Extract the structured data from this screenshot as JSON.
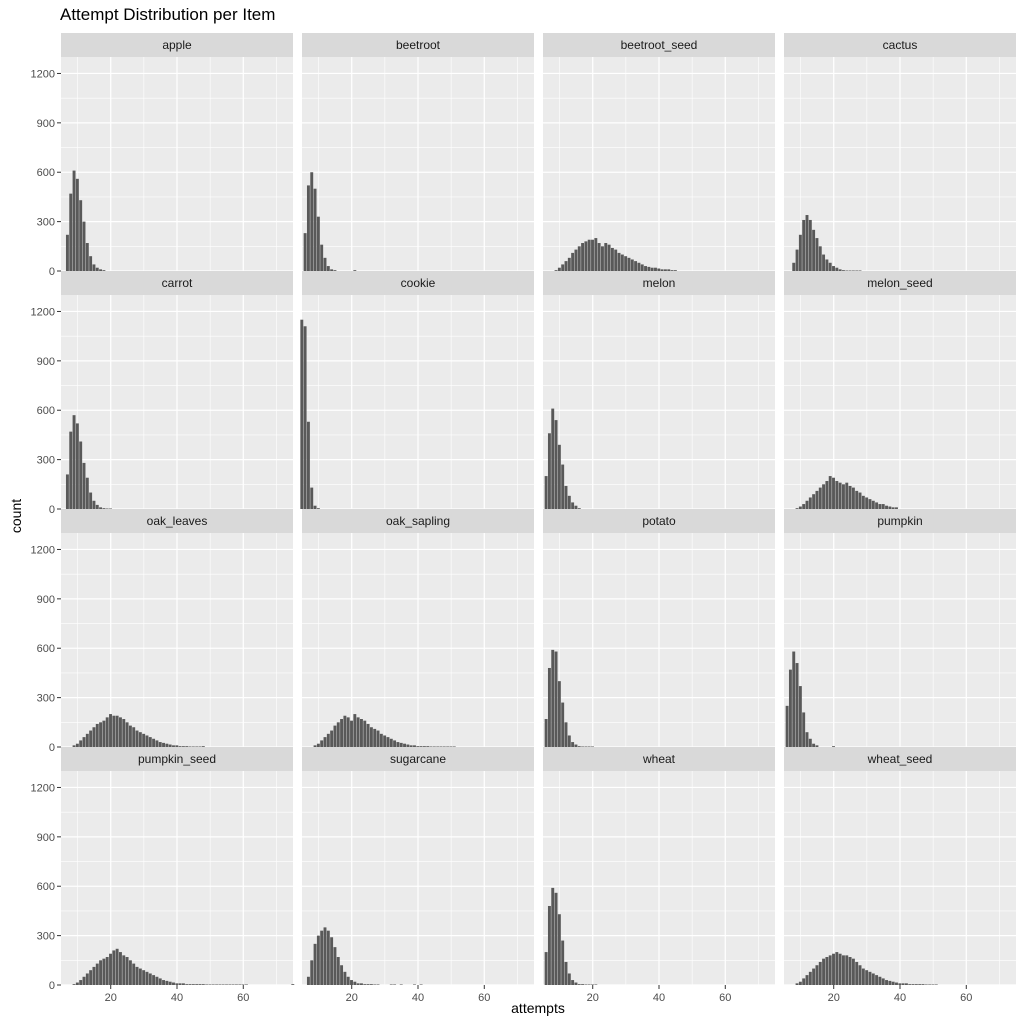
{
  "chart_data": {
    "type": "bar",
    "title": "Attempt Distribution per Item",
    "xlabel": "attempts",
    "ylabel": "count",
    "xlim": [
      5,
      75
    ],
    "ylim": [
      0,
      1300
    ],
    "x_ticks": [
      20,
      40,
      60
    ],
    "y_ticks": [
      0,
      300,
      600,
      900,
      1200
    ],
    "grid": true,
    "facets": [
      {
        "name": "apple",
        "start": 7,
        "values": [
          220,
          470,
          610,
          560,
          430,
          300,
          170,
          90,
          40,
          20,
          10,
          5
        ]
      },
      {
        "name": "beetroot",
        "start": 6,
        "values": [
          230,
          520,
          600,
          500,
          330,
          160,
          80,
          30,
          10,
          5,
          0,
          0,
          0,
          0,
          0,
          5
        ]
      },
      {
        "name": "beetroot_seed",
        "start": 9,
        "values": [
          5,
          20,
          40,
          60,
          80,
          110,
          130,
          150,
          170,
          180,
          190,
          190,
          200,
          170,
          150,
          170,
          160,
          140,
          130,
          110,
          100,
          90,
          80,
          70,
          60,
          50,
          40,
          30,
          25,
          20,
          20,
          15,
          10,
          10,
          10,
          5,
          5
        ]
      },
      {
        "name": "cactus",
        "start": 8,
        "values": [
          50,
          130,
          220,
          310,
          340,
          310,
          250,
          200,
          150,
          100,
          70,
          50,
          30,
          20,
          10,
          5,
          3,
          3,
          3,
          3,
          3
        ]
      },
      {
        "name": "carrot",
        "start": 7,
        "values": [
          210,
          470,
          570,
          520,
          410,
          280,
          190,
          100,
          50,
          25,
          10,
          5,
          3,
          3
        ]
      },
      {
        "name": "cookie",
        "start": 5,
        "values": [
          1150,
          1110,
          530,
          130,
          20,
          5
        ]
      },
      {
        "name": "melon",
        "start": 6,
        "values": [
          200,
          460,
          610,
          540,
          390,
          270,
          140,
          80,
          40,
          20,
          5
        ]
      },
      {
        "name": "melon_seed",
        "start": 9,
        "values": [
          5,
          15,
          30,
          50,
          70,
          90,
          110,
          130,
          150,
          170,
          200,
          190,
          170,
          160,
          150,
          160,
          140,
          130,
          110,
          100,
          80,
          70,
          60,
          50,
          40,
          30,
          30,
          20,
          15,
          10,
          10
        ]
      },
      {
        "name": "oak_leaves",
        "start": 9,
        "values": [
          10,
          20,
          40,
          60,
          80,
          100,
          120,
          140,
          150,
          160,
          180,
          200,
          190,
          190,
          180,
          170,
          150,
          130,
          120,
          100,
          90,
          80,
          70,
          60,
          50,
          40,
          30,
          25,
          20,
          15,
          10,
          10,
          5,
          5,
          5,
          3,
          3,
          3,
          3,
          5
        ]
      },
      {
        "name": "oak_sapling",
        "start": 9,
        "values": [
          10,
          20,
          40,
          60,
          80,
          100,
          130,
          150,
          170,
          190,
          180,
          160,
          200,
          180,
          170,
          160,
          140,
          120,
          110,
          100,
          80,
          70,
          60,
          50,
          40,
          30,
          25,
          20,
          15,
          10,
          10,
          5,
          5,
          5,
          5,
          3,
          3,
          3,
          3,
          3,
          3,
          3,
          3
        ]
      },
      {
        "name": "potato",
        "start": 6,
        "values": [
          170,
          480,
          590,
          580,
          400,
          270,
          150,
          70,
          30,
          15,
          5,
          3,
          3,
          3,
          3
        ]
      },
      {
        "name": "pumpkin",
        "start": 6,
        "values": [
          250,
          470,
          580,
          510,
          370,
          210,
          90,
          50,
          20,
          10,
          0,
          0,
          0,
          0,
          5
        ]
      },
      {
        "name": "pumpkin_seed",
        "start": 9,
        "values": [
          5,
          15,
          30,
          50,
          70,
          90,
          110,
          130,
          150,
          160,
          170,
          190,
          210,
          220,
          200,
          180,
          170,
          150,
          130,
          110,
          100,
          90,
          80,
          70,
          60,
          50,
          40,
          30,
          25,
          20,
          15,
          10,
          10,
          10,
          5,
          5,
          5,
          5,
          5,
          5,
          3,
          3,
          3,
          3,
          3,
          3,
          3,
          3,
          3,
          3,
          3,
          3,
          3,
          0,
          0,
          0,
          0,
          0,
          0,
          0,
          0,
          0,
          0,
          0,
          0,
          0,
          5
        ]
      },
      {
        "name": "sugarcane",
        "start": 7,
        "values": [
          50,
          150,
          250,
          300,
          330,
          350,
          330,
          290,
          230,
          170,
          120,
          80,
          50,
          30,
          20,
          10,
          10,
          5,
          5,
          5,
          3,
          3,
          0,
          0,
          0,
          3,
          3,
          0,
          3,
          0,
          0,
          0,
          3,
          0,
          3
        ]
      },
      {
        "name": "wheat",
        "start": 6,
        "values": [
          200,
          480,
          590,
          560,
          430,
          270,
          140,
          70,
          30,
          15,
          5,
          5,
          3,
          3,
          3,
          3
        ]
      },
      {
        "name": "wheat_seed",
        "start": 9,
        "values": [
          10,
          20,
          40,
          60,
          80,
          100,
          120,
          140,
          160,
          170,
          180,
          190,
          200,
          190,
          180,
          180,
          170,
          160,
          140,
          120,
          100,
          90,
          80,
          70,
          60,
          50,
          40,
          30,
          25,
          20,
          15,
          10,
          10,
          10,
          5,
          5,
          5,
          5,
          5,
          3,
          3,
          3,
          3
        ]
      }
    ]
  },
  "colors": {
    "panel_bg": "#ebebeb",
    "strip_bg": "#d9d9d9",
    "bar": "#595959",
    "grid": "#ffffff",
    "text": "#4d4d4d"
  }
}
